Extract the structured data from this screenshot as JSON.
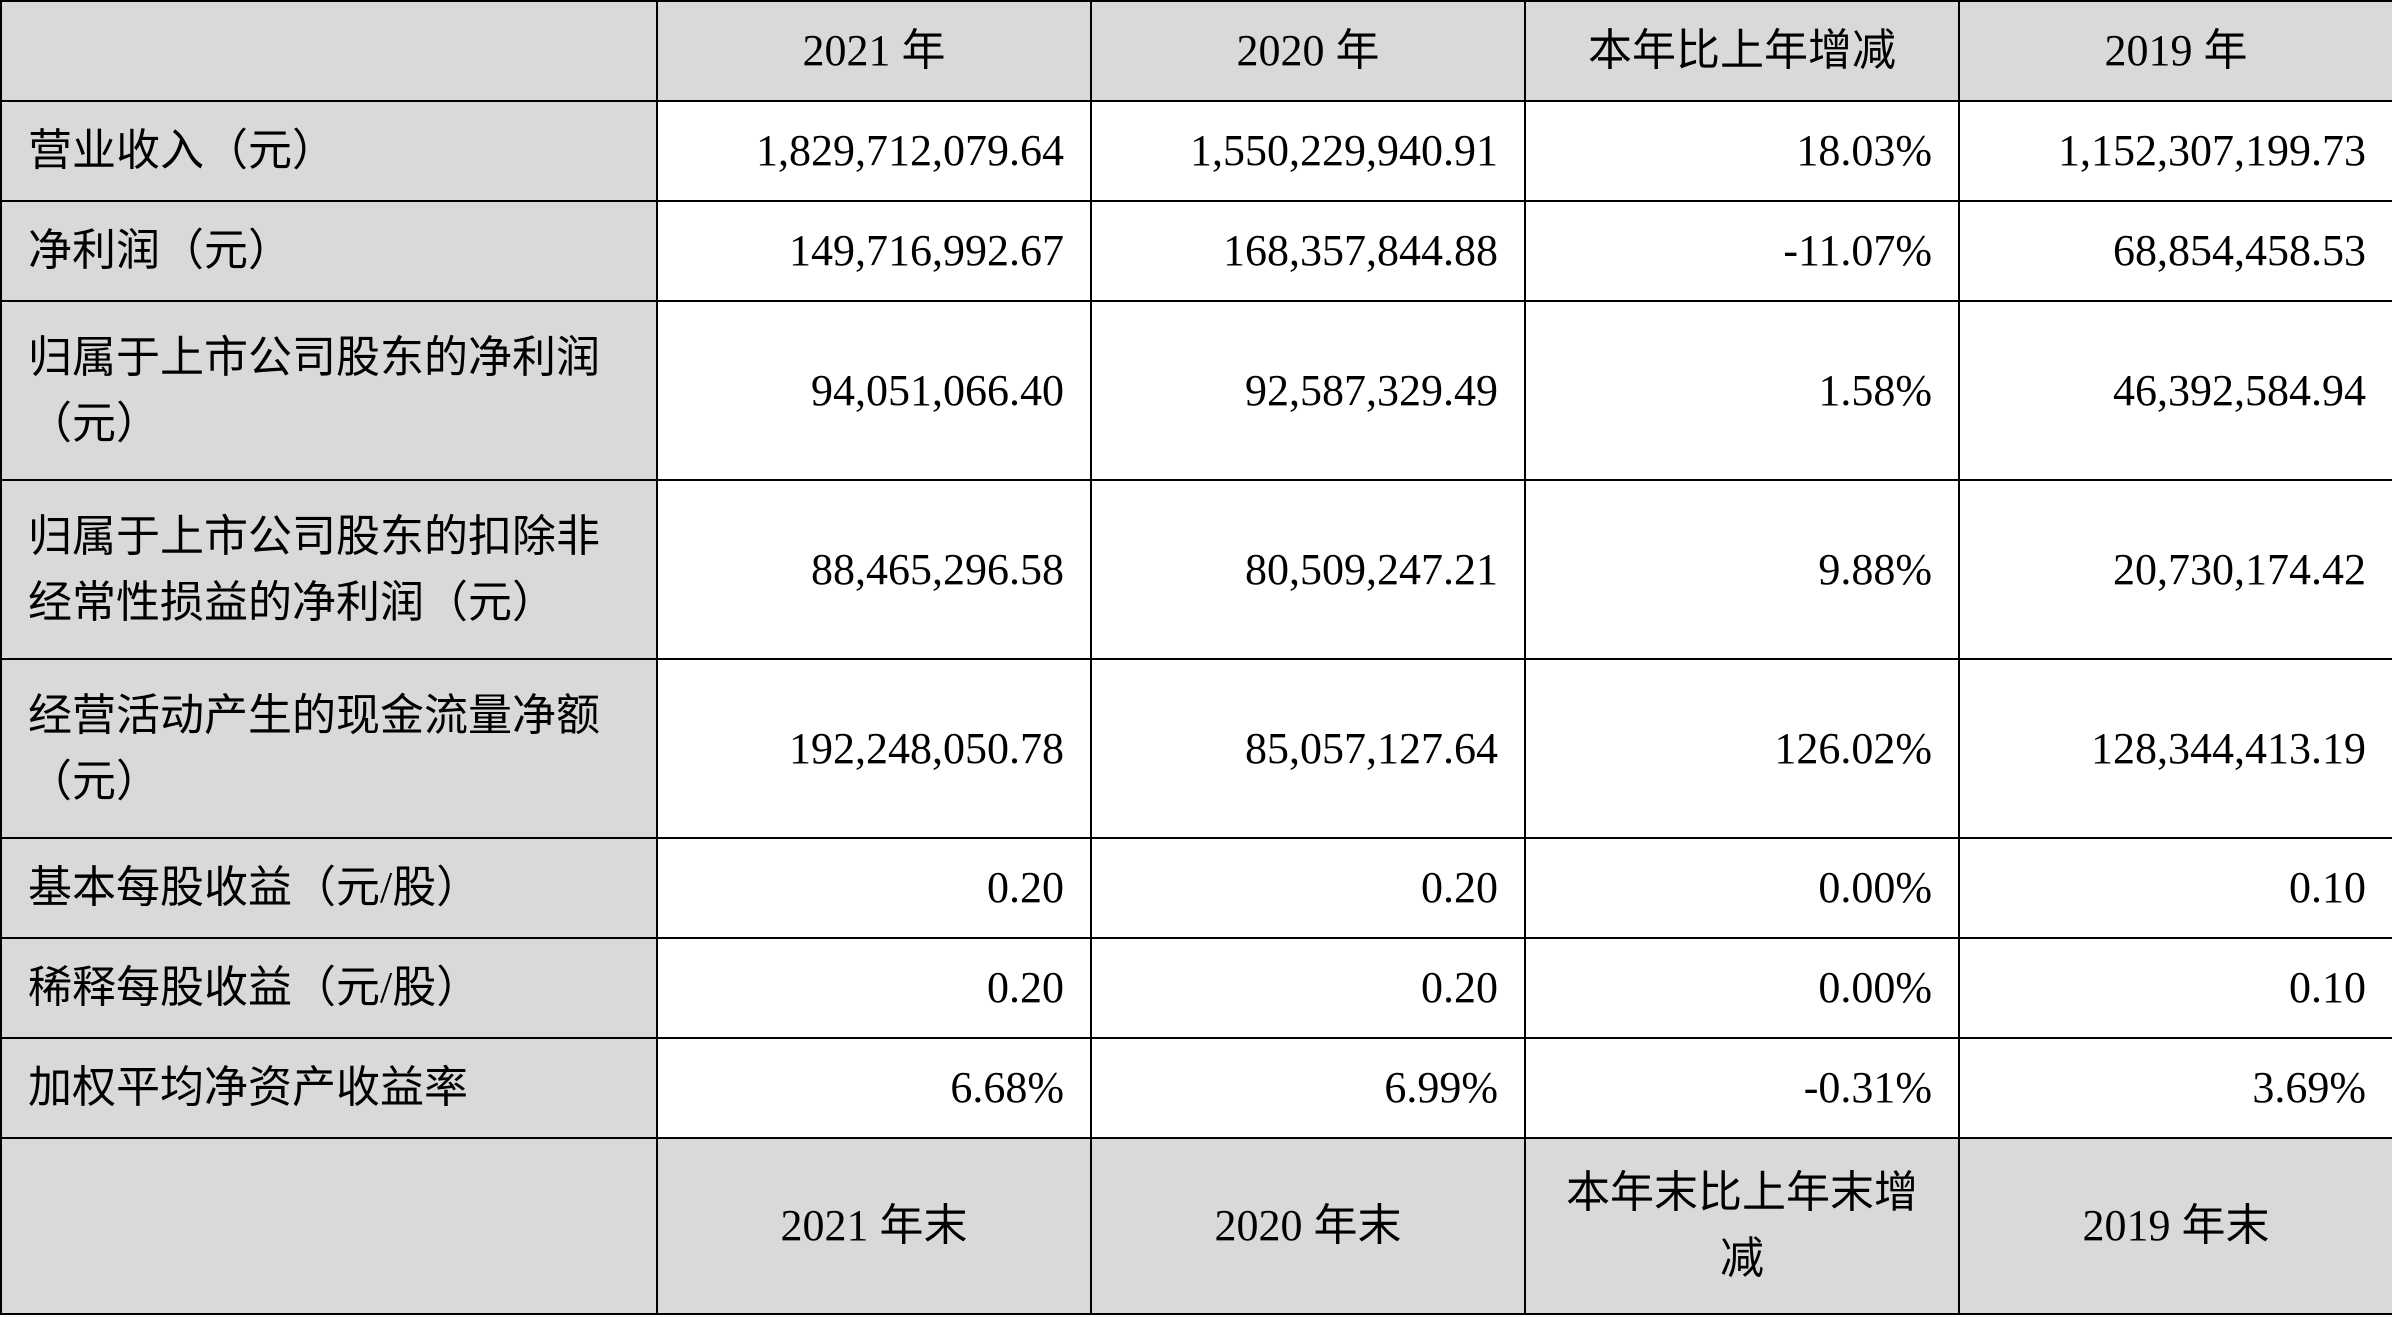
{
  "header": [
    "2021 年",
    "2020 年",
    "本年比上年增减",
    "2019 年"
  ],
  "rows": [
    {
      "label": "营业收入（元）",
      "values": [
        "1,829,712,079.64",
        "1,550,229,940.91",
        "18.03%",
        "1,152,307,199.73"
      ]
    },
    {
      "label": "净利润（元）",
      "values": [
        "149,716,992.67",
        "168,357,844.88",
        "-11.07%",
        "68,854,458.53"
      ]
    },
    {
      "label": "归属于上市公司股东的净利润（元）",
      "values": [
        "94,051,066.40",
        "92,587,329.49",
        "1.58%",
        "46,392,584.94"
      ]
    },
    {
      "label": "归属于上市公司股东的扣除非经常性损益的净利润（元）",
      "values": [
        "88,465,296.58",
        "80,509,247.21",
        "9.88%",
        "20,730,174.42"
      ]
    },
    {
      "label": "经营活动产生的现金流量净额（元）",
      "values": [
        "192,248,050.78",
        "85,057,127.64",
        "126.02%",
        "128,344,413.19"
      ]
    },
    {
      "label": "基本每股收益（元/股）",
      "values": [
        "0.20",
        "0.20",
        "0.00%",
        "0.10"
      ]
    },
    {
      "label": "稀释每股收益（元/股）",
      "values": [
        "0.20",
        "0.20",
        "0.00%",
        "0.10"
      ]
    },
    {
      "label": "加权平均净资产收益率",
      "values": [
        "6.68%",
        "6.99%",
        "-0.31%",
        "3.69%"
      ]
    }
  ],
  "footer_header": [
    "2021 年末",
    "2020 年末",
    "本年末比上年末增减",
    "2019 年末"
  ]
}
